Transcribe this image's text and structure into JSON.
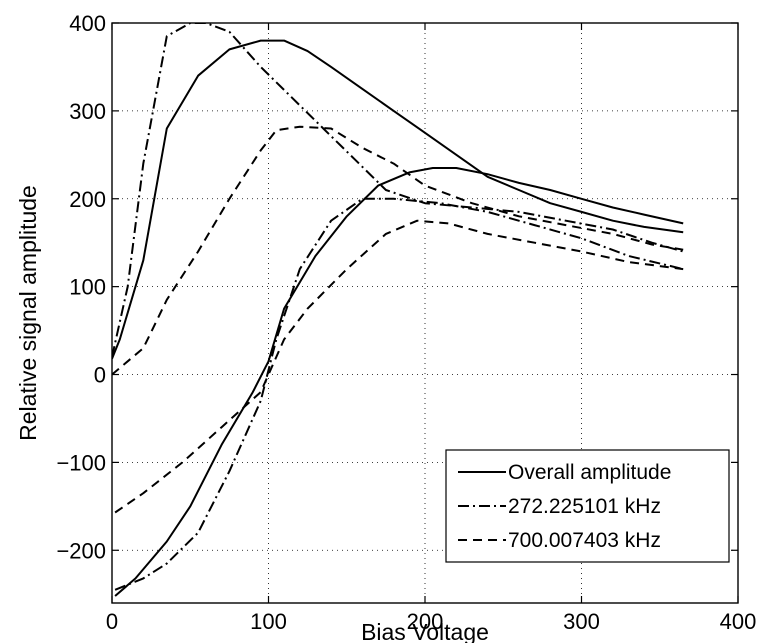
{
  "chart_data": {
    "type": "line",
    "title": "",
    "xlabel": "Bias Voltage",
    "ylabel": "Relative signal amplitude",
    "xlim": [
      0,
      400
    ],
    "ylim": [
      -260,
      400
    ],
    "xticks": [
      0,
      100,
      200,
      300,
      400
    ],
    "yticks": [
      -200,
      -100,
      0,
      100,
      200,
      300,
      400
    ],
    "xtick_labels": [
      "0",
      "100",
      "200",
      "300",
      "400"
    ],
    "ytick_labels": [
      "−200",
      "−100",
      "0",
      "100",
      "200",
      "300",
      "400"
    ],
    "grid": true,
    "legend_position": "bottom-right",
    "series": [
      {
        "name": "Overall amplitude",
        "style": "solid",
        "color": "#000000",
        "x": [
          0,
          5,
          20,
          35,
          55,
          75,
          95,
          110,
          125,
          140,
          160,
          180,
          200,
          220,
          240,
          260,
          280,
          300,
          320,
          340,
          365
        ],
        "y": [
          18,
          40,
          130,
          280,
          340,
          370,
          380,
          380,
          368,
          350,
          325,
          300,
          275,
          250,
          225,
          210,
          195,
          185,
          175,
          168,
          162
        ]
      },
      {
        "name": "",
        "style": "solid",
        "color": "#000000",
        "x": [
          2,
          15,
          35,
          50,
          70,
          90,
          100,
          110,
          130,
          150,
          170,
          190,
          205,
          220,
          240,
          260,
          280,
          300,
          320,
          340,
          365
        ],
        "y": [
          -252,
          -232,
          -190,
          -150,
          -80,
          -20,
          15,
          75,
          135,
          180,
          215,
          230,
          235,
          235,
          228,
          218,
          210,
          200,
          190,
          182,
          172
        ]
      },
      {
        "name": "272.225101 kHz",
        "style": "dashdot",
        "color": "#000000",
        "x": [
          0,
          10,
          20,
          35,
          50,
          60,
          75,
          95,
          115,
          135,
          155,
          175,
          200,
          230,
          260,
          290,
          320,
          345,
          365
        ],
        "y": [
          20,
          100,
          240,
          385,
          400,
          400,
          390,
          350,
          315,
          280,
          245,
          210,
          195,
          190,
          185,
          175,
          165,
          150,
          140
        ]
      },
      {
        "name": "",
        "style": "dashdot",
        "color": "#000000",
        "x": [
          2,
          20,
          35,
          55,
          75,
          95,
          105,
          120,
          140,
          160,
          180,
          210,
          240,
          270,
          300,
          330,
          365
        ],
        "y": [
          -245,
          -232,
          -215,
          -180,
          -110,
          -30,
          40,
          120,
          175,
          200,
          200,
          195,
          185,
          170,
          155,
          135,
          120
        ]
      },
      {
        "name": "700.007403 kHz",
        "style": "dashed",
        "color": "#000000",
        "x": [
          0,
          10,
          20,
          35,
          55,
          75,
          95,
          105,
          120,
          140,
          160,
          180,
          200,
          230,
          260,
          290,
          320,
          345,
          365
        ],
        "y": [
          0,
          15,
          30,
          85,
          140,
          200,
          255,
          278,
          282,
          280,
          258,
          240,
          215,
          195,
          180,
          170,
          160,
          148,
          142
        ]
      },
      {
        "name": "",
        "style": "dashed",
        "color": "#000000",
        "x": [
          2,
          20,
          45,
          70,
          95,
          110,
          125,
          150,
          175,
          195,
          215,
          240,
          270,
          300,
          330,
          365
        ],
        "y": [
          -157,
          -135,
          -100,
          -60,
          -20,
          40,
          75,
          120,
          160,
          175,
          172,
          160,
          150,
          140,
          128,
          120
        ]
      }
    ]
  }
}
